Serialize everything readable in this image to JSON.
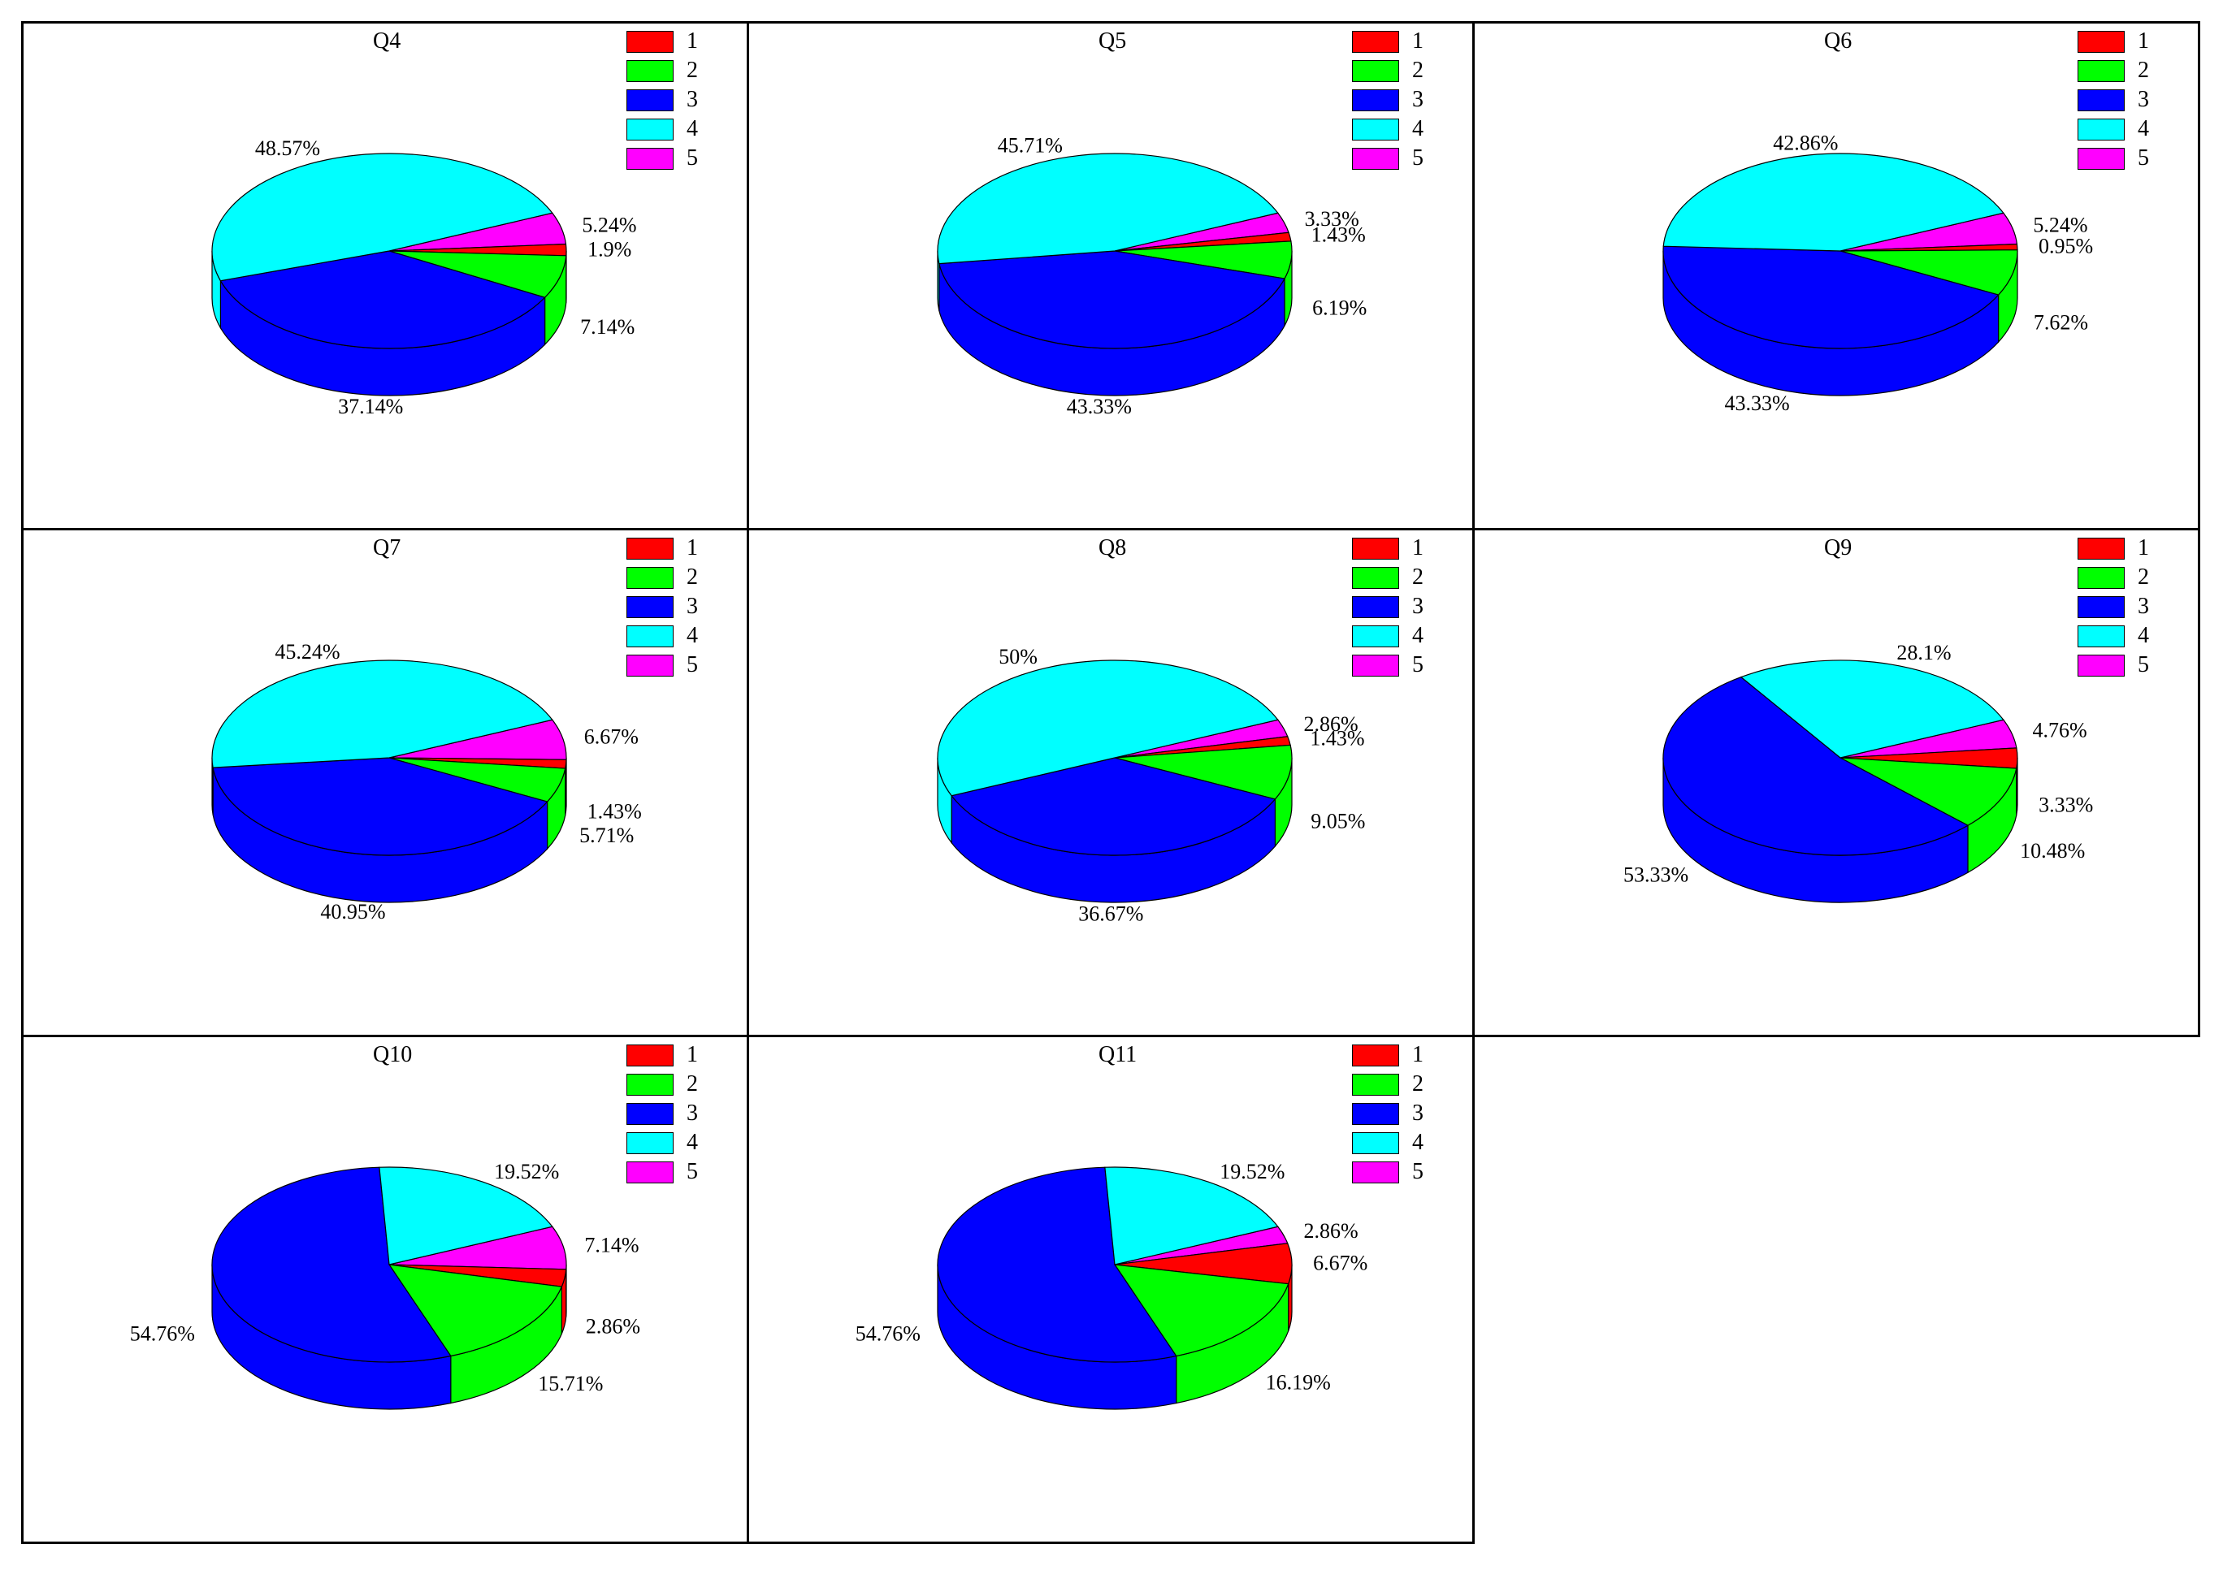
{
  "legend_labels": [
    "1",
    "2",
    "3",
    "4",
    "5"
  ],
  "series_colors": [
    "#ff0000",
    "#00ff00",
    "#0000ff",
    "#00ffff",
    "#ff00ff"
  ],
  "chart_data": [
    {
      "type": "pie",
      "title": "Q4",
      "categories": [
        "1",
        "2",
        "3",
        "4",
        "5"
      ],
      "values": [
        1.9,
        7.14,
        37.14,
        48.57,
        5.24
      ],
      "labels": [
        "1.9%",
        "7.14%",
        "37.14%",
        "48.57%",
        "5.24%"
      ]
    },
    {
      "type": "pie",
      "title": "Q5",
      "categories": [
        "1",
        "2",
        "3",
        "4",
        "5"
      ],
      "values": [
        1.43,
        6.19,
        43.33,
        45.71,
        3.33
      ],
      "labels": [
        "1.43%",
        "6.19%",
        "43.33%",
        "45.71%",
        "3.33%"
      ]
    },
    {
      "type": "pie",
      "title": "Q6",
      "categories": [
        "1",
        "2",
        "3",
        "4",
        "5"
      ],
      "values": [
        0.95,
        7.62,
        43.33,
        42.86,
        5.24
      ],
      "labels": [
        "0.95%",
        "7.62%",
        "43.33%",
        "42.86%",
        "5.24%"
      ]
    },
    {
      "type": "pie",
      "title": "Q7",
      "categories": [
        "1",
        "2",
        "3",
        "4",
        "5"
      ],
      "values": [
        1.43,
        5.71,
        40.95,
        45.24,
        6.67
      ],
      "labels": [
        "1.43%",
        "5.71%",
        "40.95%",
        "45.24%",
        "6.67%"
      ]
    },
    {
      "type": "pie",
      "title": "Q8",
      "categories": [
        "1",
        "2",
        "3",
        "4",
        "5"
      ],
      "values": [
        1.43,
        9.05,
        36.67,
        50,
        2.86
      ],
      "labels": [
        "1.43%",
        "9.05%",
        "36.67%",
        "50%",
        "2.86%"
      ]
    },
    {
      "type": "pie",
      "title": "Q9",
      "categories": [
        "1",
        "2",
        "3",
        "4",
        "5"
      ],
      "values": [
        3.33,
        10.48,
        53.33,
        28.1,
        4.76
      ],
      "labels": [
        "3.33%",
        "10.48%",
        "53.33%",
        "28.1%",
        "4.76%"
      ]
    },
    {
      "type": "pie",
      "title": "Q10",
      "categories": [
        "1",
        "2",
        "3",
        "4",
        "5"
      ],
      "values": [
        2.86,
        15.71,
        54.76,
        19.52,
        7.14
      ],
      "labels": [
        "2.86%",
        "15.71%",
        "54.76%",
        "19.52%",
        "7.14%"
      ]
    },
    {
      "type": "pie",
      "title": "Q11",
      "categories": [
        "1",
        "2",
        "3",
        "4",
        "5"
      ],
      "values": [
        6.67,
        16.19,
        54.76,
        19.52,
        2.86
      ],
      "labels": [
        "6.67%",
        "16.19%",
        "54.76%",
        "19.52%",
        "2.86%"
      ]
    }
  ]
}
